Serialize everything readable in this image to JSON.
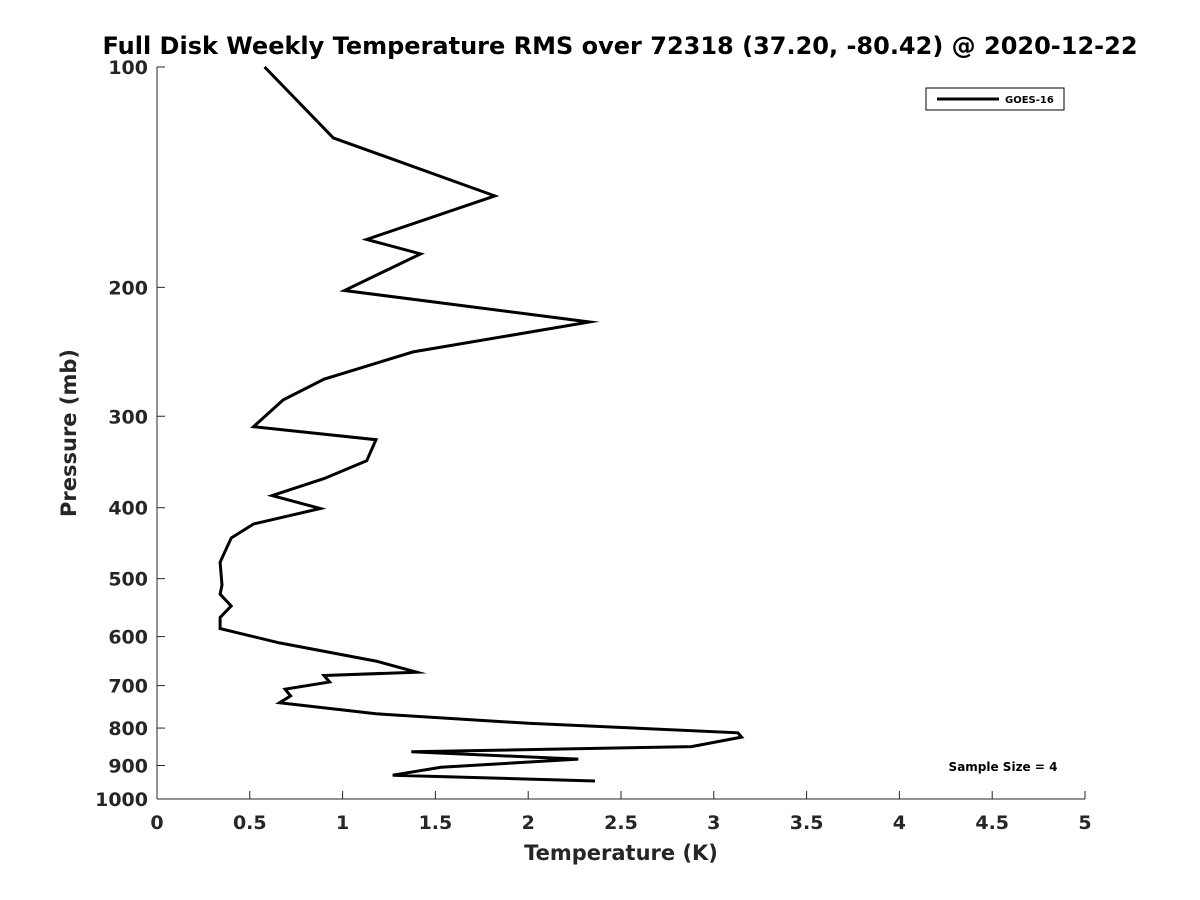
{
  "chart_data": {
    "type": "line",
    "title": "Full Disk Weekly Temperature RMS over 72318 (37.20, -80.42) @ 2020-12-22",
    "xlabel": "Temperature (K)",
    "ylabel": "Pressure (mb)",
    "xlim": [
      0,
      5
    ],
    "ylim": [
      100,
      1000
    ],
    "yscale": "log",
    "y_reversed": true,
    "grid": false,
    "legend_position": "top-right",
    "x_ticks": [
      "0",
      "0.5",
      "1",
      "1.5",
      "2",
      "2.5",
      "3",
      "3.5",
      "4",
      "4.5",
      "5"
    ],
    "y_ticks": [
      "100",
      "200",
      "300",
      "400",
      "500",
      "600",
      "700",
      "800",
      "900",
      "1000"
    ],
    "series": [
      {
        "name": "GOES-16",
        "color": "#000000",
        "x": [
          0.58,
          0.95,
          1.82,
          1.13,
          1.42,
          1.01,
          2.33,
          1.38,
          0.9,
          0.68,
          0.52,
          1.18,
          1.13,
          0.9,
          0.62,
          0.88,
          0.52,
          0.4,
          0.34,
          0.35,
          0.34,
          0.4,
          0.34,
          0.34,
          0.66,
          1.18,
          1.4,
          0.9,
          0.93,
          0.69,
          0.72,
          0.66,
          1.18,
          2.0,
          3.13,
          3.15,
          2.88,
          1.37,
          2.27,
          1.53,
          1.27,
          2.36
        ],
        "y": [
          100,
          125,
          150,
          172,
          180,
          202,
          223,
          245,
          267,
          285,
          310,
          323,
          345,
          365,
          385,
          401,
          421,
          440,
          475,
          510,
          525,
          545,
          565,
          585,
          612,
          648,
          671,
          678,
          692,
          708,
          723,
          739,
          765,
          788,
          812,
          823,
          848,
          862,
          882,
          905,
          928,
          945
        ]
      }
    ],
    "annotations": [
      "Sample Size = 4"
    ]
  }
}
